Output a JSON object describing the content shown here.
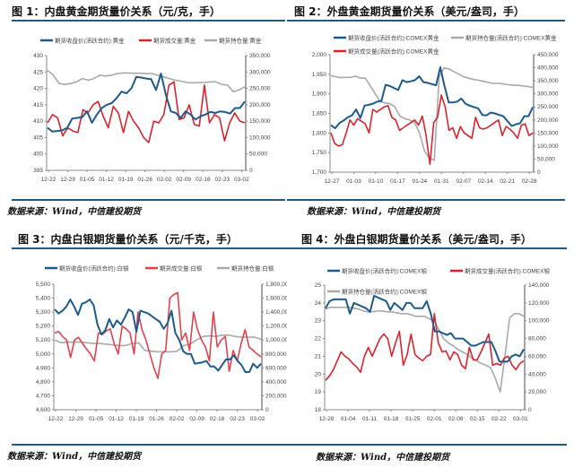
{
  "source_label": "数据来源：Wind，中信建投期货",
  "colors": {
    "price": "#1f5b8a",
    "volume": "#d9242f",
    "open_interest": "#a9a9a9",
    "rule": "#1f5b8a"
  },
  "chart_data": [
    {
      "type": "line",
      "title": "图 1：内盘黄金期货量价关系（元/克，手）",
      "x_ticks": [
        "12-22",
        "12-29",
        "01-05",
        "01-12",
        "01-19",
        "01-26",
        "02-02",
        "02-09",
        "02-16",
        "02-23",
        "03-02"
      ],
      "ylim": [
        395,
        430
      ],
      "y_ticks": [
        "395",
        "400",
        "405",
        "410",
        "415",
        "420",
        "425",
        "430"
      ],
      "y2lim": [
        0,
        350000
      ],
      "y2_ticks": [
        "0",
        "50,000",
        "100,000",
        "150,000",
        "200,000",
        "250,000",
        "300,000",
        "350,000"
      ],
      "series": [
        {
          "name": "期货收盘价(活跃合约):黄金",
          "color": "#1f5b8a",
          "axis": "left",
          "values": [
            408,
            406.8,
            407,
            407.2,
            408,
            410.8,
            411,
            411.2,
            413,
            409.5,
            412,
            414,
            415,
            415.5,
            417,
            419,
            418.5,
            420,
            423.5,
            423.3,
            423,
            422.8,
            419.5,
            424.5,
            418,
            413,
            412.5,
            411,
            413,
            412,
            410.5,
            411.5,
            412,
            412.8,
            412.5,
            413,
            412.8,
            412.3,
            414,
            414,
            416
          ]
        },
        {
          "name": "期货成交量:黄金",
          "color": "#d9242f",
          "axis": "right",
          "values": [
            145,
            170,
            160,
            105,
            130,
            120,
            115,
            185,
            175,
            200,
            210,
            165,
            130,
            195,
            175,
            115,
            180,
            150,
            130,
            100,
            85,
            150,
            145,
            170,
            260,
            270,
            155,
            160,
            200,
            140,
            135,
            260,
            145,
            170,
            160,
            90,
            145,
            175,
            150,
            145
          ]
        },
        {
          "name": "期货持仓量:黄金",
          "color": "#a9a9a9",
          "axis": "right",
          "values": [
            305,
            290,
            265,
            262,
            265,
            270,
            280,
            275,
            280,
            290,
            288,
            290,
            295,
            297,
            297,
            296,
            296,
            295,
            295,
            290,
            285,
            280,
            275,
            272,
            268,
            267,
            268,
            268,
            270,
            270,
            262,
            260,
            240,
            245,
            255
          ]
        }
      ]
    },
    {
      "type": "line",
      "title": "图 2：外盘黄金期货量价关系（美元/盎司，手）",
      "x_ticks": [
        "12-27",
        "01-03",
        "01-10",
        "01-17",
        "01-24",
        "01-31",
        "02-07",
        "02-14",
        "02-21",
        "02-28"
      ],
      "ylim": [
        1700,
        2000
      ],
      "y_ticks": [
        "1,700",
        "1,750",
        "1,800",
        "1,850",
        "1,900",
        "1,950",
        "2,000"
      ],
      "y2lim": [
        0,
        450000
      ],
      "y2_ticks": [
        "0",
        "50,000",
        "100,000",
        "150,000",
        "200,000",
        "250,000",
        "300,000",
        "350,000",
        "400,000",
        "450,000"
      ],
      "series": [
        {
          "name": "期货收盘价(活跃合约):COMEX黄金",
          "color": "#1f5b8a",
          "axis": "left",
          "values": [
            1820,
            1812,
            1825,
            1832,
            1840,
            1845,
            1860,
            1838,
            1870,
            1872,
            1875,
            1880,
            1882,
            1923,
            1920,
            1915,
            1910,
            1935,
            1930,
            1932,
            1935,
            1945,
            1930,
            1928,
            1925,
            1922,
            1968,
            1920,
            1878,
            1878,
            1880,
            1888,
            1875,
            1870,
            1866,
            1863,
            1846,
            1845,
            1852,
            1850,
            1846,
            1843,
            1830,
            1818,
            1822,
            1825,
            1843,
            1843,
            1866
          ]
        },
        {
          "name": "期货持仓量(活跃合约):COMEX黄金",
          "color": "#a9a9a9",
          "axis": "right",
          "values": [
            370,
            365,
            362,
            363,
            363,
            368,
            360,
            360,
            330,
            300,
            270,
            265,
            262,
            250,
            215,
            205,
            200,
            190,
            150,
            80,
            55,
            45,
            365,
            400,
            395,
            385,
            375,
            365,
            360,
            355,
            352,
            348,
            343,
            340,
            340,
            338,
            335,
            333,
            333,
            330,
            328,
            325
          ]
        },
        {
          "name": "期货成交量(活跃合约):COMEX黄金",
          "color": "#d9242f",
          "axis": "right",
          "values": [
            150,
            110,
            100,
            105,
            150,
            200,
            180,
            205,
            195,
            185,
            150,
            240,
            230,
            240,
            250,
            255,
            210,
            200,
            160,
            170,
            180,
            190,
            200,
            180,
            215,
            140,
            30,
            190,
            210,
            295,
            250,
            160,
            170,
            130,
            175,
            150,
            140,
            130,
            210,
            170,
            165,
            170,
            180,
            190,
            200,
            140,
            175,
            165,
            150,
            130,
            180,
            185,
            140,
            150
          ]
        }
      ]
    },
    {
      "type": "line",
      "title": "图 3：内盘白银期货量价关系（元/千克，手）",
      "x_ticks": [
        "12-22",
        "12-29",
        "01-05",
        "01-12",
        "01-19",
        "01-26",
        "02-02",
        "02-09",
        "02-16",
        "02-23",
        "03-02"
      ],
      "ylim": [
        4600,
        5500
      ],
      "y_ticks": [
        "4,600",
        "4,700",
        "4,800",
        "4,900",
        "5,000",
        "5,100",
        "5,200",
        "5,300",
        "5,400",
        "5,500"
      ],
      "y2lim": [
        0,
        1800000
      ],
      "y2_ticks": [
        "0",
        "200,000",
        "400,000",
        "600,000",
        "800,000",
        "1,000,000",
        "1,200,000",
        "1,400,000",
        "1,600,000",
        "1,800,000"
      ],
      "series": [
        {
          "name": "期货收盘价(活跃合约):白银",
          "color": "#1f5b8a",
          "axis": "left",
          "values": [
            5320,
            5290,
            5310,
            5340,
            5390,
            5340,
            5280,
            5360,
            5370,
            5390,
            5350,
            5210,
            5140,
            5170,
            5250,
            5190,
            5240,
            5210,
            5260,
            5320,
            5300,
            5160,
            5310,
            5300,
            5290,
            5270,
            5250,
            5230,
            5180,
            5220,
            5310,
            5150,
            5100,
            5020,
            5000,
            5000,
            4930,
            4935,
            4940,
            4950,
            4910,
            4910,
            4880,
            4920,
            4960,
            4960,
            4990,
            4950,
            4920,
            4870,
            4870,
            4930,
            4900,
            4930
          ]
        },
        {
          "name": "期货成交量:白银",
          "color": "#e0434d",
          "axis": "right",
          "values": [
            1100,
            1120,
            1050,
            1000,
            750,
            1000,
            1040,
            950,
            870,
            800,
            700,
            1100,
            1080,
            1130,
            1160,
            950,
            800,
            1200,
            1160,
            1100,
            800,
            1400,
            1150,
            1000,
            800,
            600,
            450,
            800,
            850,
            1600,
            1650,
            1680,
            1000,
            1100,
            850,
            1400,
            1150,
            1000,
            900,
            700,
            1400,
            900,
            1000,
            1050,
            550,
            850,
            700,
            950,
            1150,
            900,
            850,
            800,
            760
          ]
        },
        {
          "name": "期货持仓量:白银",
          "color": "#a9a9a9",
          "axis": "right",
          "values": [
            1000,
            960,
            970,
            970,
            970,
            960,
            950,
            950,
            940,
            930,
            920,
            920,
            950,
            960,
            850,
            840,
            830,
            830,
            830,
            840,
            920,
            940,
            1000,
            1050,
            1060,
            1050,
            1070,
            1070,
            1050,
            1040,
            1040,
            1040,
            1010
          ]
        }
      ]
    },
    {
      "type": "line",
      "title": "图 4：外盘白银期货量价关系（美元/盎司，手）",
      "x_ticks": [
        "12-28",
        "01-04",
        "01-11",
        "01-18",
        "01-25",
        "02-01",
        "02-08",
        "02-15",
        "02-22",
        "03-01"
      ],
      "ylim": [
        18,
        25
      ],
      "y_ticks": [
        "18",
        "19",
        "20",
        "21",
        "22",
        "23",
        "24",
        "25"
      ],
      "y2lim": [
        0,
        140000
      ],
      "y2_ticks": [
        "0",
        "20,000",
        "40,000",
        "60,000",
        "80,000",
        "100,000",
        "120,000",
        "140,000"
      ],
      "series": [
        {
          "name": "期货收盘价(活跃合约):COMEX银",
          "color": "#1f5b8a",
          "axis": "left",
          "values": [
            23.7,
            24.1,
            24.2,
            24.2,
            24.2,
            24.2,
            23.4,
            24.0,
            23.9,
            23.8,
            23.7,
            23.5,
            24.4,
            24.3,
            24.2,
            24.1,
            23.6,
            24.0,
            23.8,
            23.6,
            24.0,
            24.0,
            23.7,
            23.7,
            23.7,
            24.1,
            23.4,
            22.4,
            22.4,
            22.3,
            22.2,
            22.3,
            22.0,
            22.0,
            22.0,
            21.8,
            21.6,
            21.6,
            21.7,
            21.8,
            21.8,
            21.8,
            21.3,
            20.7,
            20.7,
            20.7,
            21.0,
            21.1,
            21.0,
            21.4
          ]
        },
        {
          "name": "期货成交量(活跃合约):COMEX银",
          "color": "#d9242f",
          "axis": "right",
          "values": [
            33,
            38,
            45,
            55,
            65,
            60,
            57,
            52,
            48,
            42,
            60,
            70,
            60,
            70,
            80,
            85,
            80,
            60,
            75,
            88,
            50,
            62,
            85,
            62,
            58,
            55,
            60,
            62,
            108,
            75,
            65,
            66,
            56,
            65,
            62,
            50,
            46,
            70,
            56,
            56,
            65,
            75,
            85,
            50,
            52,
            50,
            58,
            60,
            50,
            45,
            52,
            55
          ]
        },
        {
          "name": "期货持仓量(活跃合约):COMEX银",
          "color": "#a9a9a9",
          "axis": "right",
          "values": [
            113,
            115,
            115,
            115,
            115,
            115,
            114,
            113,
            111,
            110,
            110,
            111,
            111,
            110,
            110,
            109,
            108,
            108,
            107,
            105,
            105,
            105,
            102,
            100,
            90,
            80,
            75,
            72,
            68,
            65,
            62,
            58,
            55,
            52,
            50,
            47,
            35,
            20,
            60,
            103,
            108,
            108,
            105
          ]
        }
      ]
    }
  ]
}
